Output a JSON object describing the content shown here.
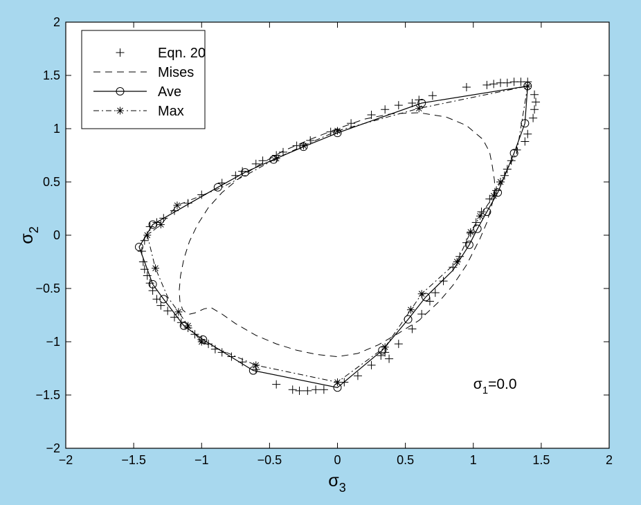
{
  "chart_data": {
    "type": "line",
    "title": "",
    "xlabel": "σ3",
    "xlabel_base": "σ",
    "xlabel_sub": "3",
    "ylabel": "σ2",
    "ylabel_base": "σ",
    "ylabel_sub": "2",
    "xlim": [
      -2,
      2
    ],
    "ylim": [
      -2,
      2
    ],
    "xticks": [
      -2,
      -1.5,
      -1,
      -0.5,
      0,
      0.5,
      1,
      1.5,
      2
    ],
    "yticks": [
      -2,
      -1.5,
      -1,
      -0.5,
      0,
      0.5,
      1,
      1.5,
      2
    ],
    "xtick_labels": [
      "−2",
      "−1.5",
      "−1",
      "−0.5",
      "0",
      "0.5",
      "1",
      "1.5",
      "2"
    ],
    "ytick_labels": [
      "−2",
      "−1.5",
      "−1",
      "−0.5",
      "0",
      "0.5",
      "1",
      "1.5",
      "2"
    ],
    "grid": false,
    "legend_position": "top-left",
    "annotation": {
      "base": "σ",
      "sub": "1",
      "rest": "=0.0",
      "text": "σ1=0.0",
      "x": 1.0,
      "y": -1.44
    },
    "colors": {
      "background": "#a8d8ee",
      "plot_face": "#ffffff",
      "ink": "#000000"
    },
    "series": [
      {
        "name": "Eqn. 20",
        "style": "plus-markers",
        "points": [
          [
            1.4,
            1.44
          ],
          [
            1.35,
            1.44
          ],
          [
            1.3,
            1.44
          ],
          [
            1.25,
            1.43
          ],
          [
            1.2,
            1.43
          ],
          [
            1.15,
            1.42
          ],
          [
            1.1,
            1.41
          ],
          [
            0.95,
            1.39
          ],
          [
            0.7,
            1.31
          ],
          [
            0.6,
            1.27
          ],
          [
            0.55,
            1.24
          ],
          [
            0.45,
            1.22
          ],
          [
            0.35,
            1.18
          ],
          [
            0.25,
            1.13
          ],
          [
            0.1,
            1.05
          ],
          [
            -0.05,
            0.97
          ],
          [
            -0.2,
            0.89
          ],
          [
            -0.3,
            0.84
          ],
          [
            -0.4,
            0.78
          ],
          [
            -0.45,
            0.75
          ],
          [
            -0.55,
            0.7
          ],
          [
            -0.6,
            0.67
          ],
          [
            -0.7,
            0.6
          ],
          [
            -0.75,
            0.56
          ],
          [
            -0.85,
            0.49
          ],
          [
            -1.0,
            0.38
          ],
          [
            -1.1,
            0.3
          ],
          [
            -1.2,
            0.23
          ],
          [
            -1.28,
            0.16
          ],
          [
            -1.33,
            0.12
          ],
          [
            -1.38,
            0.08
          ],
          [
            -1.42,
            -0.05
          ],
          [
            -1.44,
            -0.15
          ],
          [
            -1.43,
            -0.25
          ],
          [
            -1.42,
            -0.32
          ],
          [
            -1.4,
            -0.38
          ],
          [
            -1.38,
            -0.45
          ],
          [
            -1.36,
            -0.52
          ],
          [
            -1.33,
            -0.6
          ],
          [
            -1.3,
            -0.66
          ],
          [
            -1.25,
            -0.71
          ],
          [
            -1.2,
            -0.77
          ],
          [
            -1.15,
            -0.82
          ],
          [
            -1.1,
            -0.87
          ],
          [
            -1.05,
            -0.93
          ],
          [
            -1.0,
            -0.98
          ],
          [
            -0.95,
            -1.02
          ],
          [
            -0.9,
            -1.07
          ],
          [
            -0.85,
            -1.1
          ],
          [
            -0.78,
            -1.14
          ],
          [
            -0.7,
            -1.19
          ],
          [
            -0.6,
            -1.26
          ],
          [
            -0.45,
            -1.4
          ],
          [
            -0.33,
            -1.45
          ],
          [
            -0.28,
            -1.46
          ],
          [
            -0.22,
            -1.46
          ],
          [
            -0.16,
            -1.45
          ],
          [
            -0.1,
            -1.45
          ],
          [
            0.05,
            -1.38
          ],
          [
            0.15,
            -1.32
          ],
          [
            0.25,
            -1.22
          ],
          [
            0.35,
            -1.1
          ],
          [
            0.32,
            -1.13
          ],
          [
            0.38,
            -1.16
          ],
          [
            0.45,
            -1.02
          ],
          [
            0.55,
            -0.88
          ],
          [
            0.62,
            -0.74
          ],
          [
            0.68,
            -0.62
          ],
          [
            0.72,
            -0.54
          ],
          [
            0.78,
            -0.43
          ],
          [
            0.85,
            -0.3
          ],
          [
            0.9,
            -0.2
          ],
          [
            0.95,
            -0.07
          ],
          [
            0.98,
            0.02
          ],
          [
            1.02,
            0.12
          ],
          [
            1.06,
            0.22
          ],
          [
            1.12,
            0.34
          ],
          [
            1.17,
            0.42
          ],
          [
            1.2,
            0.5
          ],
          [
            1.23,
            0.56
          ],
          [
            1.25,
            0.62
          ],
          [
            1.28,
            0.7
          ],
          [
            1.32,
            0.8
          ],
          [
            1.38,
            0.88
          ],
          [
            1.4,
            0.95
          ],
          [
            1.44,
            1.1
          ],
          [
            1.45,
            1.18
          ],
          [
            1.46,
            1.25
          ],
          [
            1.45,
            1.32
          ]
        ]
      },
      {
        "name": "Mises",
        "style": "dashed",
        "points": [
          [
            -0.4,
            0.79
          ],
          [
            -0.55,
            0.68
          ],
          [
            -0.7,
            0.56
          ],
          [
            -0.85,
            0.4
          ],
          [
            -0.95,
            0.26
          ],
          [
            -1.03,
            0.1
          ],
          [
            -1.09,
            -0.06
          ],
          [
            -1.13,
            -0.22
          ],
          [
            -1.155,
            -0.38
          ],
          [
            -1.165,
            -0.52
          ],
          [
            -1.16,
            -0.62
          ],
          [
            -1.14,
            -0.7
          ],
          [
            -1.1,
            -0.745
          ],
          [
            -1.05,
            -0.73
          ],
          [
            -0.98,
            -0.69
          ],
          [
            -0.93,
            -0.68
          ],
          [
            -0.85,
            -0.74
          ],
          [
            -0.75,
            -0.83
          ],
          [
            -0.6,
            -0.94
          ],
          [
            -0.45,
            -1.02
          ],
          [
            -0.3,
            -1.08
          ],
          [
            -0.15,
            -1.12
          ],
          [
            0.0,
            -1.14
          ],
          [
            0.15,
            -1.11
          ],
          [
            0.3,
            -1.03
          ],
          [
            0.45,
            -0.92
          ],
          [
            0.6,
            -0.8
          ],
          [
            0.75,
            -0.62
          ],
          [
            0.85,
            -0.47
          ],
          [
            0.95,
            -0.28
          ],
          [
            1.05,
            -0.03
          ],
          [
            1.1,
            0.12
          ],
          [
            1.14,
            0.3
          ],
          [
            1.16,
            0.42
          ],
          [
            1.155,
            0.52
          ],
          [
            1.14,
            0.65
          ],
          [
            1.12,
            0.78
          ],
          [
            1.07,
            0.9
          ],
          [
            0.95,
            1.03
          ],
          [
            0.8,
            1.11
          ],
          [
            0.6,
            1.15
          ],
          [
            0.4,
            1.14
          ],
          [
            0.2,
            1.09
          ],
          [
            0.0,
            1.0
          ],
          [
            -0.2,
            0.9
          ],
          [
            -0.4,
            0.79
          ]
        ]
      },
      {
        "name": "Ave",
        "style": "solid-circle",
        "points": [
          [
            1.4,
            1.4
          ],
          [
            1.38,
            1.05
          ],
          [
            1.3,
            0.77
          ],
          [
            1.18,
            0.4
          ],
          [
            1.1,
            0.22
          ],
          [
            1.03,
            0.06
          ],
          [
            0.97,
            -0.09
          ],
          [
            0.85,
            -0.33
          ],
          [
            0.65,
            -0.58
          ],
          [
            0.52,
            -0.79
          ],
          [
            0.33,
            -1.08
          ],
          [
            0.0,
            -1.43
          ],
          [
            -0.62,
            -1.27
          ],
          [
            -0.99,
            -0.98
          ],
          [
            -1.13,
            -0.85
          ],
          [
            -1.28,
            -0.6
          ],
          [
            -1.36,
            -0.46
          ],
          [
            -1.46,
            -0.11
          ],
          [
            -1.36,
            0.1
          ],
          [
            -1.1,
            0.29
          ],
          [
            -0.88,
            0.45
          ],
          [
            -0.68,
            0.59
          ],
          [
            -0.47,
            0.71
          ],
          [
            -0.25,
            0.83
          ],
          [
            0.0,
            0.96
          ],
          [
            0.62,
            1.24
          ],
          [
            1.4,
            1.4
          ]
        ],
        "markers": [
          [
            1.4,
            1.4
          ],
          [
            1.38,
            1.05
          ],
          [
            1.3,
            0.77
          ],
          [
            1.18,
            0.4
          ],
          [
            1.1,
            0.22
          ],
          [
            1.03,
            0.06
          ],
          [
            0.97,
            -0.09
          ],
          [
            0.65,
            -0.58
          ],
          [
            0.52,
            -0.79
          ],
          [
            0.33,
            -1.08
          ],
          [
            0.0,
            -1.43
          ],
          [
            -0.62,
            -1.27
          ],
          [
            -0.99,
            -0.98
          ],
          [
            -1.13,
            -0.85
          ],
          [
            -1.28,
            -0.6
          ],
          [
            -1.36,
            -0.46
          ],
          [
            -1.46,
            -0.11
          ],
          [
            -1.36,
            0.1
          ],
          [
            -0.88,
            0.45
          ],
          [
            -0.68,
            0.59
          ],
          [
            -0.47,
            0.71
          ],
          [
            -0.25,
            0.83
          ],
          [
            0.0,
            0.96
          ],
          [
            0.62,
            1.24
          ]
        ]
      },
      {
        "name": "Max",
        "style": "dashdot-star",
        "points": [
          [
            1.4,
            1.4
          ],
          [
            1.32,
            0.78
          ],
          [
            1.2,
            0.5
          ],
          [
            1.15,
            0.37
          ],
          [
            1.05,
            0.18
          ],
          [
            0.98,
            0.03
          ],
          [
            0.88,
            -0.25
          ],
          [
            0.62,
            -0.55
          ],
          [
            0.54,
            -0.7
          ],
          [
            0.35,
            -1.05
          ],
          [
            0.0,
            -1.38
          ],
          [
            -0.6,
            -1.22
          ],
          [
            -1.0,
            -1.0
          ],
          [
            -1.1,
            -0.85
          ],
          [
            -1.17,
            -0.72
          ],
          [
            -1.25,
            -0.58
          ],
          [
            -1.34,
            -0.31
          ],
          [
            -1.4,
            0.0
          ],
          [
            -1.3,
            0.1
          ],
          [
            -1.18,
            0.28
          ],
          [
            -0.85,
            0.45
          ],
          [
            -0.65,
            0.58
          ],
          [
            -0.45,
            0.72
          ],
          [
            -0.25,
            0.84
          ],
          [
            0.0,
            0.98
          ],
          [
            0.6,
            1.19
          ],
          [
            1.4,
            1.4
          ]
        ],
        "markers": [
          [
            1.4,
            1.4
          ],
          [
            1.2,
            0.5
          ],
          [
            1.15,
            0.37
          ],
          [
            1.05,
            0.18
          ],
          [
            0.98,
            0.03
          ],
          [
            0.88,
            -0.25
          ],
          [
            0.62,
            -0.55
          ],
          [
            0.54,
            -0.7
          ],
          [
            0.35,
            -1.05
          ],
          [
            0.0,
            -1.38
          ],
          [
            -0.6,
            -1.22
          ],
          [
            -1.0,
            -1.0
          ],
          [
            -1.1,
            -0.85
          ],
          [
            -1.17,
            -0.72
          ],
          [
            -1.34,
            -0.31
          ],
          [
            -1.4,
            0.0
          ],
          [
            -1.3,
            0.1
          ],
          [
            -1.18,
            0.28
          ],
          [
            -0.45,
            0.72
          ],
          [
            -0.25,
            0.84
          ],
          [
            0.0,
            0.98
          ],
          [
            0.6,
            1.19
          ]
        ]
      }
    ]
  }
}
